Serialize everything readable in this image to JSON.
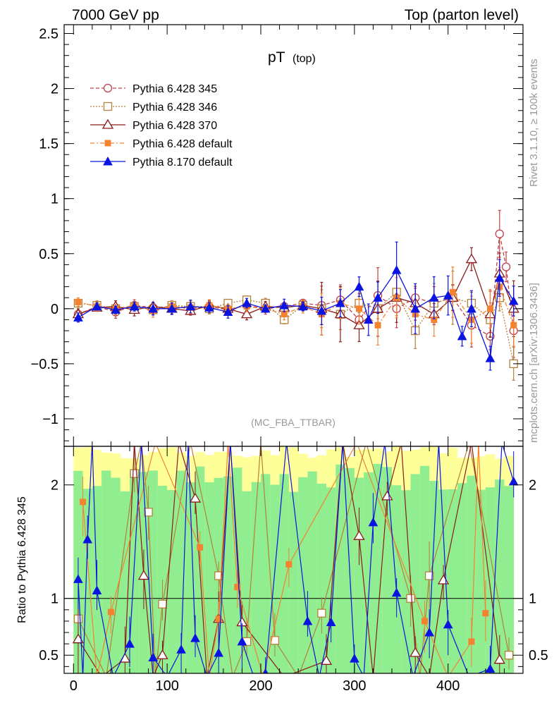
{
  "header": {
    "left": "7000 GeV pp",
    "right": "Top (parton level)"
  },
  "side_labels": {
    "rivet": "Rivet 3.1.10, ≥ 100k events",
    "mcplots": "mcplots.cern.ch [arXiv:1306.3436]"
  },
  "chart_data": [
    {
      "type": "line",
      "title": "pT",
      "title_sub": "(top)",
      "watermark": "(MC_FBA_TTBAR)",
      "xlim": [
        -10,
        480
      ],
      "ylim": [
        -1.25,
        2.58
      ],
      "yticks": [
        "−1",
        "−0.5",
        "0",
        "0.5",
        "1",
        "1.5",
        "2",
        "2.5"
      ],
      "ytick_values": [
        -1,
        -0.5,
        0,
        0.5,
        1,
        1.5,
        2,
        2.5
      ],
      "legend_position": "top-left",
      "grid": false,
      "series": [
        {
          "name": "Pythia 6.428 345",
          "color": "#c0404a",
          "marker": "open-circle",
          "dash": "5,3",
          "x": [
            5,
            25,
            45,
            65,
            85,
            105,
            125,
            145,
            165,
            185,
            205,
            225,
            245,
            265,
            285,
            305,
            325,
            345,
            365,
            385,
            405,
            425,
            445,
            455,
            462,
            470
          ],
          "y": [
            -0.05,
            0.02,
            -0.03,
            0.03,
            0.01,
            0.02,
            0.0,
            0.02,
            -0.01,
            0.03,
            0.0,
            0.02,
            0.05,
            0.03,
            0.08,
            -0.1,
            0.12,
            0.0,
            0.1,
            0.05,
            0.1,
            -0.15,
            -0.25,
            0.68,
            0.38,
            -0.2
          ]
        },
        {
          "name": "Pythia 6.428 346",
          "color": "#b5803a",
          "marker": "open-square",
          "dash": "2,2",
          "x": [
            5,
            25,
            45,
            65,
            85,
            105,
            125,
            145,
            165,
            185,
            205,
            225,
            245,
            265,
            285,
            305,
            325,
            345,
            365,
            385,
            405,
            425,
            445,
            455,
            470
          ],
          "y": [
            0.05,
            0.03,
            0.0,
            0.02,
            -0.01,
            0.03,
            0.02,
            0.0,
            0.05,
            0.08,
            0.05,
            -0.1,
            0.03,
            0.0,
            -0.05,
            0.05,
            0.0,
            0.15,
            -0.2,
            0.05,
            0.1,
            0.05,
            -0.1,
            0.1,
            -0.5
          ]
        },
        {
          "name": "Pythia 6.428 370",
          "color": "#8b1a1a",
          "marker": "open-triangle",
          "dash": "",
          "x": [
            5,
            25,
            45,
            65,
            85,
            105,
            125,
            145,
            165,
            185,
            205,
            225,
            245,
            265,
            285,
            305,
            325,
            345,
            365,
            385,
            405,
            425,
            445,
            455,
            470
          ],
          "y": [
            -0.05,
            0.01,
            0.02,
            -0.01,
            0.02,
            0.0,
            -0.02,
            0.03,
            0.0,
            -0.05,
            0.02,
            0.01,
            0.03,
            0.0,
            -0.05,
            -0.15,
            0.0,
            0.1,
            0.05,
            -0.05,
            0.1,
            0.45,
            -0.05,
            0.32,
            0.0
          ]
        },
        {
          "name": "Pythia 6.428 default",
          "color": "#f58231",
          "marker": "filled-square",
          "dash": "6,3,2,3",
          "x": [
            5,
            25,
            45,
            65,
            85,
            105,
            125,
            145,
            165,
            185,
            205,
            225,
            245,
            265,
            285,
            305,
            325,
            345,
            365,
            385,
            405,
            425,
            445,
            455,
            470
          ],
          "y": [
            0.06,
            0.02,
            0.0,
            0.03,
            -0.02,
            0.02,
            0.01,
            0.03,
            0.0,
            0.02,
            0.0,
            -0.05,
            0.02,
            -0.05,
            0.05,
            0.0,
            -0.15,
            0.1,
            -0.05,
            -0.1,
            0.15,
            -0.1,
            0.0,
            0.2,
            -0.15
          ]
        },
        {
          "name": "Pythia 8.170 default",
          "color": "#0a14e0",
          "marker": "filled-triangle",
          "dash": "",
          "x": [
            5,
            25,
            45,
            65,
            85,
            105,
            125,
            145,
            165,
            185,
            205,
            225,
            245,
            265,
            285,
            305,
            315,
            325,
            345,
            365,
            385,
            400,
            415,
            425,
            445,
            455,
            470
          ],
          "y": [
            -0.08,
            0.02,
            -0.01,
            0.02,
            0.0,
            0.0,
            0.02,
            0.01,
            -0.03,
            0.05,
            0.0,
            0.03,
            0.02,
            -0.02,
            0.05,
            0.2,
            -0.1,
            0.1,
            0.35,
            0.0,
            0.1,
            0.12,
            -0.25,
            0.0,
            -0.45,
            0.28,
            0.07
          ]
        }
      ]
    },
    {
      "type": "line",
      "ylabel": "Ratio to Pythia 6.428 345",
      "xlim": [
        -10,
        480
      ],
      "ylim": [
        0.34,
        2.34
      ],
      "yticks": [
        "0.5",
        "1",
        "2"
      ],
      "ytick_values": [
        0.5,
        1,
        2
      ],
      "xticks": [
        "0",
        "100",
        "200",
        "300",
        "400"
      ],
      "xtick_values": [
        0,
        100,
        200,
        300,
        400
      ],
      "reference_line": 1,
      "bands": [
        {
          "name": "",
          "color": "#ffff99"
        },
        {
          "name": "",
          "color": "#90ee90"
        }
      ],
      "series": [
        {
          "name": "Pythia 6.428 346",
          "color": "#b5803a",
          "marker": "open-square",
          "x": [
            5,
            65,
            80,
            95,
            155,
            185,
            215,
            265,
            360,
            380,
            465
          ],
          "y": [
            0.82,
            2.1,
            1.76,
            0.95,
            1.2,
            0.62,
            0.63,
            0.87,
            1.0,
            1.2,
            0.5
          ]
        },
        {
          "name": "Pythia 6.428 370",
          "color": "#8b1a1a",
          "marker": "open-triangle",
          "x": [
            5,
            55,
            75,
            95,
            130,
            155,
            180,
            270,
            305,
            335,
            365,
            395,
            455
          ],
          "y": [
            0.64,
            0.47,
            1.2,
            0.5,
            1.88,
            0.82,
            0.79,
            0.45,
            1.55,
            1.9,
            0.52,
            1.16,
            0.46
          ]
        },
        {
          "name": "Pythia 6.428 default",
          "color": "#f58231",
          "marker": "filled-square",
          "x": [
            10,
            40,
            135,
            155,
            175,
            230,
            375,
            425,
            440
          ],
          "y": [
            1.85,
            0.88,
            1.45,
            0.82,
            1.1,
            1.3,
            0.8,
            0.62,
            0.87
          ]
        },
        {
          "name": "Pythia 8.170 default",
          "color": "#0a14e0",
          "marker": "filled-triangle",
          "x": [
            5,
            15,
            25,
            60,
            85,
            115,
            130,
            155,
            180,
            205,
            250,
            275,
            300,
            320,
            345,
            380,
            400,
            445,
            470
          ],
          "y": [
            1.17,
            1.52,
            1.07,
            0.6,
            0.48,
            0.55,
            0.65,
            0.52,
            0.62,
            0.34,
            0.8,
            0.79,
            0.47,
            1.67,
            1.05,
            0.7,
            0.77,
            0.38,
            2.03
          ]
        }
      ]
    }
  ]
}
